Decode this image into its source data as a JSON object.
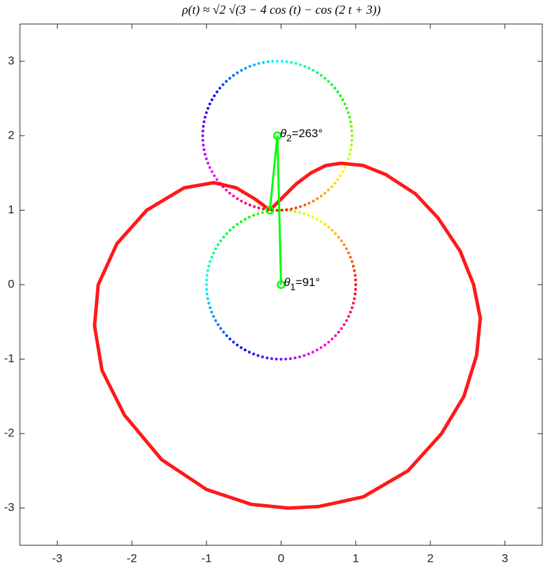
{
  "chart_data": {
    "type": "linkage",
    "title": "ρ(t) ≈ √2 √(3 − 4 cos (t) − cos (2 t + 3))",
    "xlim": [
      -3.5,
      3.5
    ],
    "ylim": [
      -3.5,
      3.5
    ],
    "xticks": [
      -3,
      -2,
      -1,
      0,
      1,
      2,
      3
    ],
    "yticks": [
      -3,
      -2,
      -1,
      0,
      1,
      2,
      3
    ],
    "curve": {
      "color": "#ff0000",
      "x": [
        -0.15,
        0.0,
        0.2,
        0.4,
        0.6,
        0.8,
        1.1,
        1.4,
        1.8,
        2.1,
        2.4,
        2.58,
        2.67,
        2.62,
        2.45,
        2.15,
        1.7,
        1.1,
        0.5,
        0.1,
        -0.4,
        -1.0,
        -1.6,
        -2.1,
        -2.4,
        -2.5,
        -2.45,
        -2.2,
        -1.8,
        -1.3,
        -0.9,
        -0.6,
        -0.35,
        -0.15
      ],
      "y": [
        1.0,
        1.15,
        1.35,
        1.5,
        1.6,
        1.63,
        1.6,
        1.48,
        1.22,
        0.9,
        0.45,
        0.0,
        -0.45,
        -0.95,
        -1.5,
        -2.0,
        -2.5,
        -2.85,
        -2.98,
        -3.0,
        -2.95,
        -2.75,
        -2.35,
        -1.75,
        -1.15,
        -0.55,
        0.0,
        0.55,
        1.0,
        1.3,
        1.37,
        1.3,
        1.15,
        1.0
      ]
    },
    "circles": [
      {
        "cx": 0,
        "cy": 0,
        "r": 1,
        "hue_offset": 0
      },
      {
        "cx": -0.05,
        "cy": 2,
        "r": 1,
        "hue_offset": 90
      }
    ],
    "linkage": {
      "color": "#00ff00",
      "x": [
        0,
        -0.05,
        -0.15
      ],
      "y": [
        0,
        2,
        1.0
      ]
    },
    "annotations": [
      {
        "symbol": "θ",
        "subscript": "1",
        "text": "=91°"
      },
      {
        "symbol": "θ",
        "subscript": "2",
        "text": "=263°"
      }
    ]
  }
}
